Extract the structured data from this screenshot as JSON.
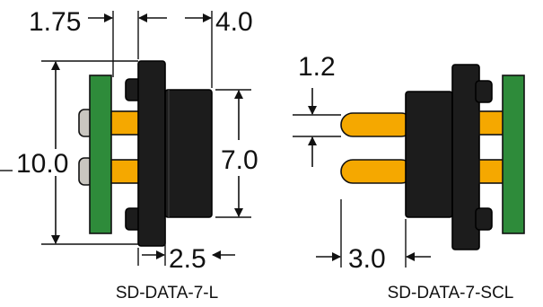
{
  "left": {
    "caption": "SD-DATA-7-L",
    "dims": {
      "top_left": "1.75",
      "top_right": "4.0",
      "height_overall": "10.0",
      "height_body": "7.0",
      "bottom": "2.5"
    }
  },
  "right": {
    "caption": "SD-DATA-7-SCL",
    "dims": {
      "pin_diameter": "1.2",
      "pin_length": "3.0"
    }
  },
  "colors": {
    "pcb": "#2e8b3a",
    "pin": "#f5a800",
    "body": "#1c1c1c",
    "pin_tip": "#c9c6c0"
  }
}
